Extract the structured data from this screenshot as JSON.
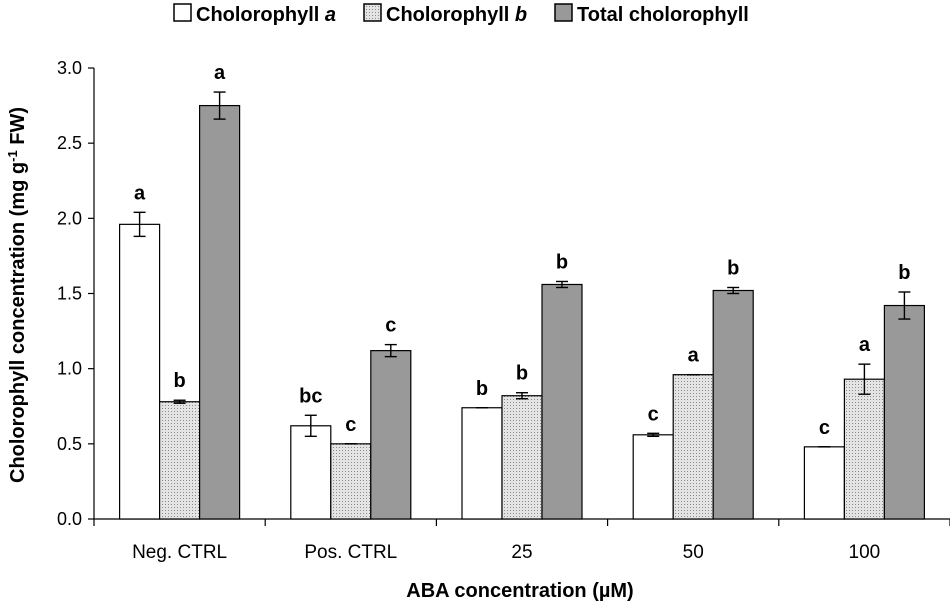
{
  "chart_data": {
    "type": "bar",
    "categories": [
      "Neg. CTRL",
      "Pos. CTRL",
      "25",
      "50",
      "100"
    ],
    "series": [
      {
        "name": "Cholorophyll a",
        "label_main": "Cholorophyll ",
        "label_italic": "a",
        "color": "#ffffff",
        "pattern": "none",
        "values": [
          1.96,
          0.62,
          0.74,
          0.56,
          0.48
        ],
        "errors": [
          0.08,
          0.07,
          0.0,
          0.01,
          0.0
        ],
        "letters": [
          "a",
          "bc",
          "b",
          "c",
          "c"
        ]
      },
      {
        "name": "Cholorophyll b",
        "label_main": "Cholorophyll ",
        "label_italic": "b",
        "color": "#e2e2e2",
        "pattern": "dots",
        "values": [
          0.78,
          0.5,
          0.82,
          0.96,
          0.93
        ],
        "errors": [
          0.01,
          0.0,
          0.02,
          0.0,
          0.1
        ],
        "letters": [
          "b",
          "c",
          "b",
          "a",
          "a"
        ]
      },
      {
        "name": "Total cholorophyll",
        "label_main": "Total cholorophyll",
        "label_italic": "",
        "color": "#999999",
        "pattern": "none",
        "values": [
          2.75,
          1.12,
          1.56,
          1.52,
          1.42
        ],
        "errors": [
          0.09,
          0.04,
          0.02,
          0.02,
          0.09
        ],
        "letters": [
          "a",
          "c",
          "b",
          "b",
          "b"
        ]
      }
    ],
    "ylim": [
      0,
      3.0
    ],
    "yticks": [
      "0.0",
      "0.5",
      "1.0",
      "1.5",
      "2.0",
      "2.5",
      "3.0"
    ],
    "ylabel_main": "Cholorophyll concentration (mg g",
    "ylabel_sup": "-1",
    "ylabel_end": " FW)",
    "xlabel": "ABA concentration (µM)",
    "legend_position": "top",
    "grid": false
  }
}
